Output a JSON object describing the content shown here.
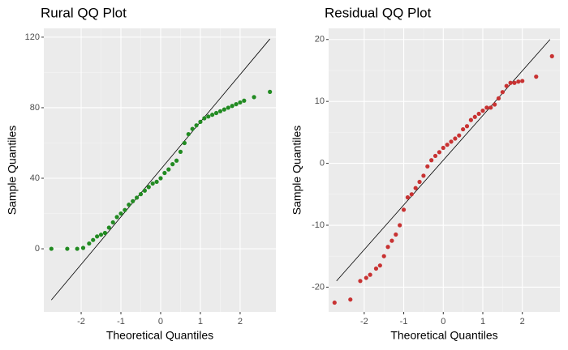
{
  "chart_data": [
    {
      "type": "scatter",
      "title": "Rural QQ Plot",
      "xlabel": "Theoretical Quantiles",
      "ylabel": "Sample Quantiles",
      "color": "#228b22",
      "grid": true,
      "xlim": [
        -2.94,
        2.9
      ],
      "ylim": [
        -35.8,
        125
      ],
      "xticks": [
        -2,
        -1,
        0,
        1,
        2
      ],
      "yticks": [
        0,
        40,
        80,
        120
      ],
      "x": [
        -2.75,
        -2.35,
        -2.1,
        -1.95,
        -1.8,
        -1.7,
        -1.6,
        -1.5,
        -1.4,
        -1.3,
        -1.2,
        -1.1,
        -1.0,
        -0.9,
        -0.8,
        -0.7,
        -0.6,
        -0.5,
        -0.4,
        -0.3,
        -0.2,
        -0.1,
        0,
        0.1,
        0.2,
        0.3,
        0.4,
        0.5,
        0.6,
        0.7,
        0.8,
        0.9,
        1.0,
        1.1,
        1.2,
        1.3,
        1.4,
        1.5,
        1.6,
        1.7,
        1.8,
        1.9,
        2.0,
        2.1,
        2.35,
        2.75
      ],
      "y": [
        0,
        0,
        0,
        0.5,
        3,
        5,
        7,
        8,
        9,
        12,
        15,
        18,
        20,
        22,
        25,
        27,
        29,
        31,
        33,
        35,
        37,
        38,
        40,
        43,
        45,
        48,
        50,
        55,
        60,
        65,
        68,
        70,
        72,
        74,
        75,
        76,
        77,
        78,
        79,
        80,
        81,
        82,
        83,
        84,
        86,
        89
      ],
      "line": {
        "x": [
          -2.75,
          2.75
        ],
        "y": [
          -29,
          119
        ]
      }
    },
    {
      "type": "scatter",
      "title": "Residual QQ Plot",
      "xlabel": "Theoretical Quantiles",
      "ylabel": "Sample Quantiles",
      "color": "#c83232",
      "grid": true,
      "xlim": [
        -2.9,
        2.95
      ],
      "ylim": [
        -24,
        21.8
      ],
      "xticks": [
        -2,
        -1,
        0,
        1,
        2
      ],
      "yticks": [
        -20,
        -10,
        0,
        10,
        20
      ],
      "x": [
        -2.75,
        -2.35,
        -2.1,
        -1.95,
        -1.85,
        -1.7,
        -1.6,
        -1.5,
        -1.4,
        -1.3,
        -1.2,
        -1.1,
        -1.0,
        -0.9,
        -0.8,
        -0.7,
        -0.6,
        -0.5,
        -0.4,
        -0.3,
        -0.2,
        -0.1,
        0,
        0.1,
        0.2,
        0.3,
        0.4,
        0.5,
        0.6,
        0.7,
        0.8,
        0.9,
        1.0,
        1.1,
        1.2,
        1.3,
        1.4,
        1.5,
        1.6,
        1.7,
        1.8,
        1.9,
        2.0,
        2.35,
        2.75
      ],
      "y": [
        -22.5,
        -22,
        -19,
        -18.5,
        -18,
        -17,
        -16.5,
        -15,
        -13.5,
        -12.5,
        -11.5,
        -10,
        -7.5,
        -5.5,
        -5,
        -4,
        -3,
        -2,
        -0.5,
        0.5,
        1.2,
        1.8,
        2.5,
        3,
        3.5,
        4,
        4.5,
        5.5,
        6,
        7,
        7.5,
        8,
        8.5,
        9,
        9,
        9.5,
        10.5,
        11.5,
        12.5,
        13,
        13,
        13.2,
        13.3,
        14,
        17.3
      ],
      "line": {
        "x": [
          -2.7,
          2.7
        ],
        "y": [
          -19,
          20
        ]
      }
    }
  ]
}
